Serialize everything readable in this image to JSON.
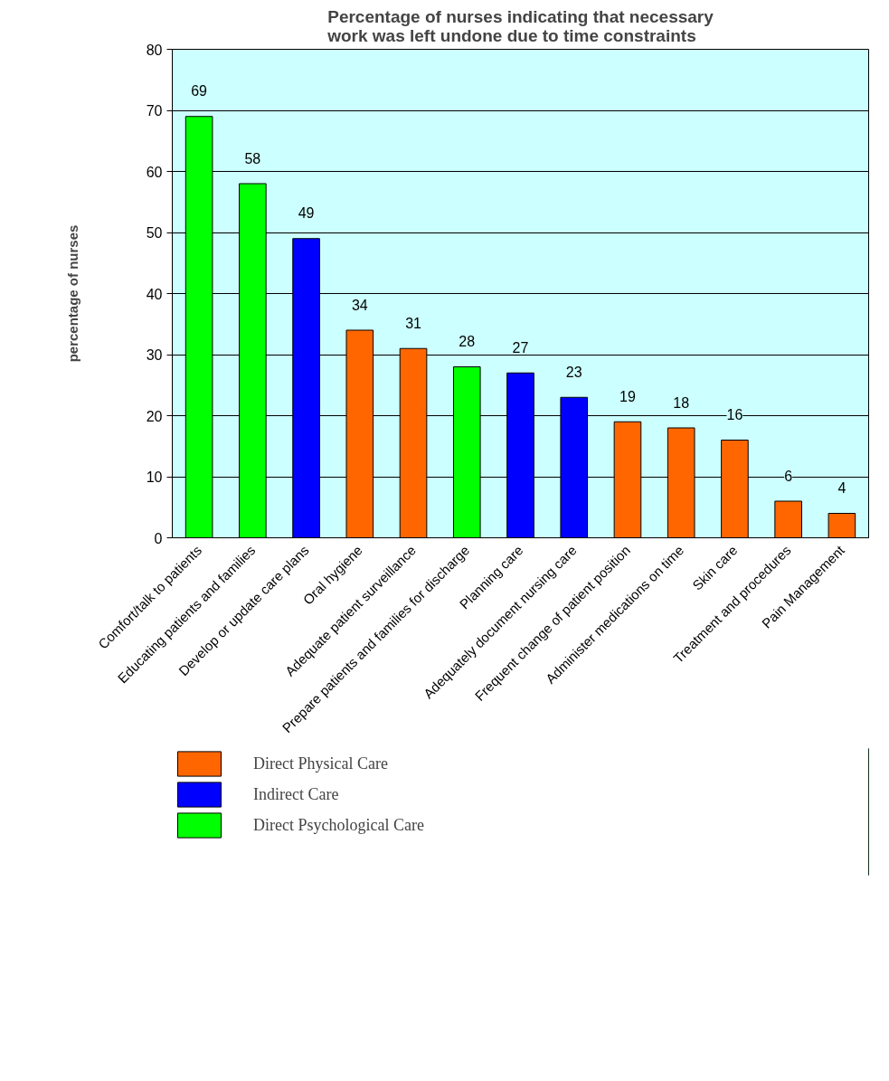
{
  "chart_data": {
    "type": "bar",
    "title": "Percentage of nurses indicating that necessary work was left undone due to time constraints",
    "ylabel": "percentage of nurses",
    "categories": [
      "Comfort/talk to patients",
      "Educating patients and families",
      "Develop or update care plans",
      "Oral hygiene",
      "Adequate patient surveillance",
      "Prepare patients and families for discharge",
      "Planning care",
      "Adequately document nursing care",
      "Frequent change of patient position",
      "Administer medications on time",
      "Skin care",
      "Treatment and procedures",
      "Pain Management"
    ],
    "series": [
      {
        "name": "Direct Physical Care",
        "color": "#ff6600",
        "values": [
          null,
          null,
          null,
          34,
          31,
          null,
          null,
          null,
          19,
          18,
          16,
          6,
          4
        ]
      },
      {
        "name": "Indirect Care",
        "color": "#0000ff",
        "values": [
          null,
          null,
          49,
          null,
          null,
          null,
          27,
          23,
          null,
          null,
          null,
          null,
          null
        ]
      },
      {
        "name": "Direct Psychological Care",
        "color": "#00ff00",
        "values": [
          69,
          58,
          null,
          null,
          null,
          28,
          null,
          null,
          null,
          null,
          null,
          null,
          null
        ]
      }
    ],
    "ylim": [
      0,
      80
    ],
    "yticks": [
      0,
      10,
      20,
      30,
      40,
      50,
      60,
      70,
      80
    ],
    "grid": "y",
    "legend": "bottom",
    "data_labels": true
  }
}
